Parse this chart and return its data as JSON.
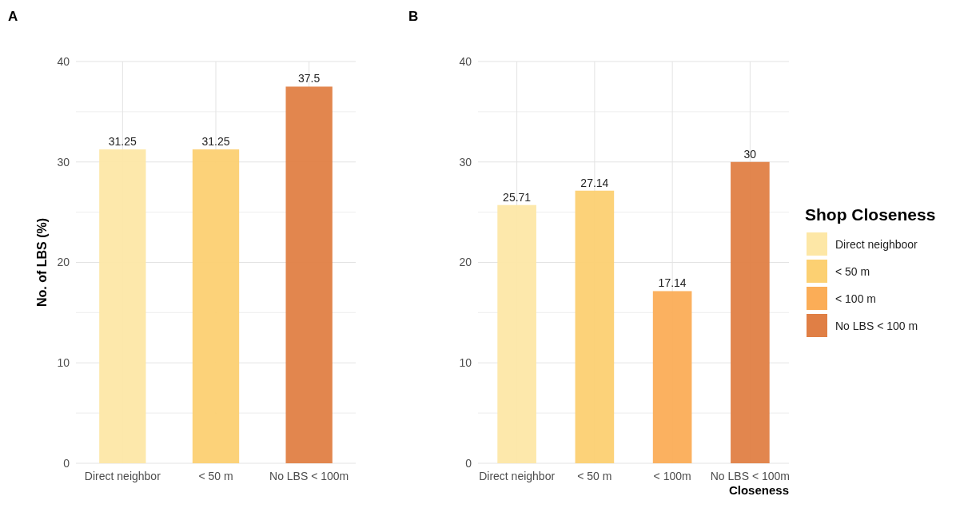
{
  "chart_data": [
    {
      "type": "bar",
      "title": "A",
      "ylabel": "No. of LBS (%)",
      "categories": [
        "Direct neighbor",
        "< 50 m",
        "No LBS < 100m"
      ],
      "values": [
        31.25,
        31.25,
        37.5
      ],
      "colors": [
        "#fde7a6",
        "#fcd072",
        "#e07f45"
      ],
      "ylim": [
        0,
        40
      ],
      "yticks": [
        0,
        {
          "value": 5,
          "label": null
        },
        10,
        {
          "value": 15,
          "label": null
        },
        20,
        {
          "value": 25,
          "label": null
        },
        30,
        {
          "value": 35,
          "label": null
        },
        40
      ],
      "grid": true,
      "data_labels": true
    },
    {
      "type": "bar",
      "title": "B",
      "xlabel": "Closeness",
      "legend_title": "Shop Closeness",
      "categories": [
        "Direct neighbor",
        "< 50 m",
        "< 100m",
        "No LBS < 100m"
      ],
      "series": [
        {
          "name": "Direct neighboor",
          "color": "#fde7a6",
          "values": [
            25.71,
            null,
            null,
            null
          ]
        },
        {
          "name": "< 50 m",
          "color": "#fcd072",
          "values": [
            null,
            27.14,
            null,
            null
          ]
        },
        {
          "name": "< 100 m",
          "color": "#fbad57",
          "values": [
            null,
            null,
            17.14,
            null
          ]
        },
        {
          "name": "No LBS < 100 m",
          "color": "#e07f45",
          "values": [
            null,
            null,
            null,
            30
          ]
        }
      ],
      "ylim": [
        0,
        40
      ],
      "yticks": [
        0,
        {
          "value": 5,
          "label": null
        },
        10,
        {
          "value": 15,
          "label": null
        },
        20,
        {
          "value": 25,
          "label": null
        },
        30,
        {
          "value": 35,
          "label": null
        },
        40
      ],
      "grid": true,
      "legend": "right",
      "data_labels": true
    }
  ]
}
